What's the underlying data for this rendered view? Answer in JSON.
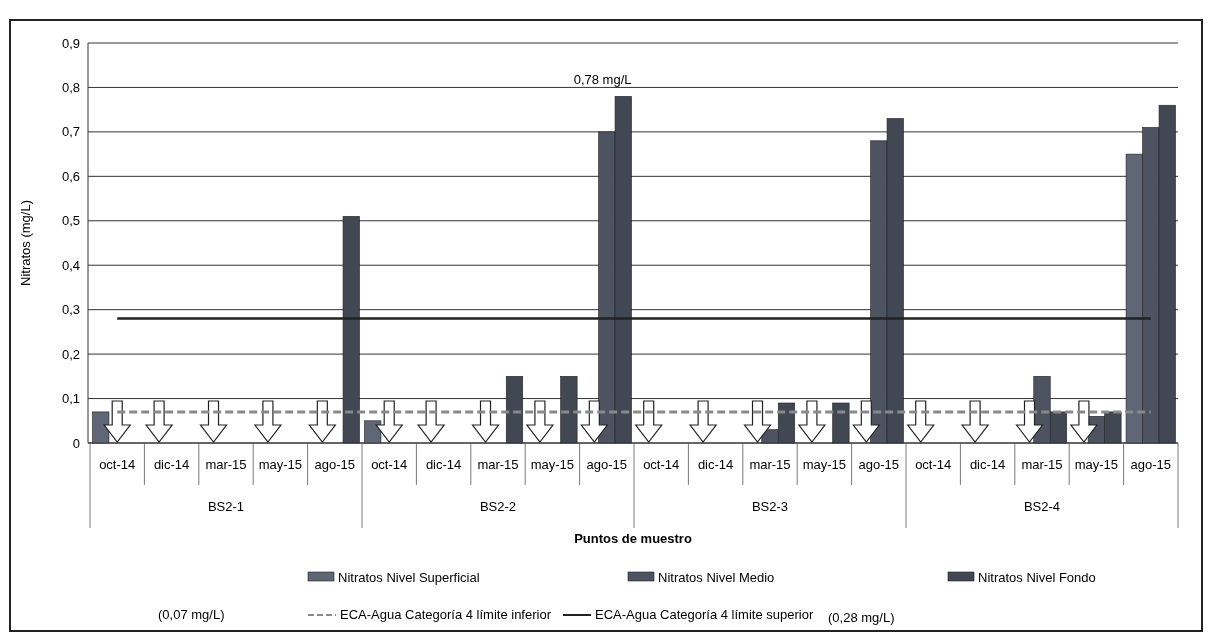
{
  "chart_data": {
    "type": "bar",
    "ylabel": "Nitratos (mg/L)",
    "xlabel": "Puntos de muestro",
    "categories": [
      "oct-14",
      "dic-14",
      "mar-15",
      "may-15",
      "ago-15",
      "oct-14",
      "dic-14",
      "mar-15",
      "may-15",
      "ago-15",
      "oct-14",
      "dic-14",
      "mar-15",
      "may-15",
      "ago-15",
      "oct-14",
      "dic-14",
      "mar-15",
      "may-15",
      "ago-15"
    ],
    "series": [
      {
        "name": "Nitratos Nivel Superficial",
        "color": "#5f6675",
        "values": [
          0.07,
          null,
          null,
          null,
          null,
          0.05,
          null,
          null,
          null,
          null,
          null,
          null,
          null,
          null,
          null,
          null,
          null,
          null,
          null,
          0.65
        ]
      },
      {
        "name": "Nitratos Nivel Medio",
        "color": "#4d5361",
        "values": [
          null,
          null,
          null,
          null,
          null,
          null,
          null,
          null,
          null,
          0.7,
          null,
          null,
          0.03,
          null,
          0.68,
          null,
          null,
          0.15,
          0.06,
          0.71
        ]
      },
      {
        "name": "Nitratos Nivel Fondo",
        "color": "#414753",
        "values": [
          null,
          null,
          null,
          null,
          0.51,
          null,
          null,
          0.15,
          0.15,
          0.78,
          null,
          null,
          0.09,
          0.09,
          0.73,
          null,
          null,
          0.07,
          0.07,
          0.76
        ]
      },
      {
        "type": "line",
        "name": "ECA-Agua Categoría 4 límite inferior",
        "color": "#8a8a8a",
        "line_style": "dashed",
        "values": [
          0.07,
          0.07,
          0.07,
          0.07,
          0.07,
          0.07,
          0.07,
          0.07,
          0.07,
          0.07,
          0.07,
          0.07,
          0.07,
          0.07,
          0.07,
          0.07,
          0.07,
          0.07,
          0.07,
          0.07
        ]
      },
      {
        "type": "line",
        "name": "ECA-Agua Categoría 4 límite superior",
        "color": "#222222",
        "line_style": "solid",
        "values": [
          0.28,
          0.28,
          0.28,
          0.28,
          0.28,
          0.28,
          0.28,
          0.28,
          0.28,
          0.28,
          0.28,
          0.28,
          0.28,
          0.28,
          0.28,
          0.28,
          0.28,
          0.28,
          0.28,
          0.28
        ]
      }
    ],
    "ylim": [
      0,
      0.9
    ],
    "yticks": [
      0,
      {
        "value": 0.1,
        "label": "0,1"
      },
      {
        "value": 0.2,
        "label": "0,2"
      },
      {
        "value": 0.3,
        "label": "0,3"
      },
      {
        "value": 0.4,
        "label": "0,4"
      },
      {
        "value": 0.5,
        "label": "0,5"
      },
      {
        "value": 0.6,
        "label": "0,6"
      },
      {
        "value": 0.7,
        "label": "0,7"
      },
      {
        "value": 0.8,
        "label": "0,8"
      },
      {
        "value": 0.9,
        "label": "0,9"
      }
    ],
    "annotations": [
      "BS2-1",
      "BS2-2",
      "BS2-3",
      "BS2-4",
      "0,78 mg/L",
      "(0,07 mg/L)",
      "(0,28 mg/L)"
    ],
    "grid": "y",
    "legend": "bottom"
  }
}
